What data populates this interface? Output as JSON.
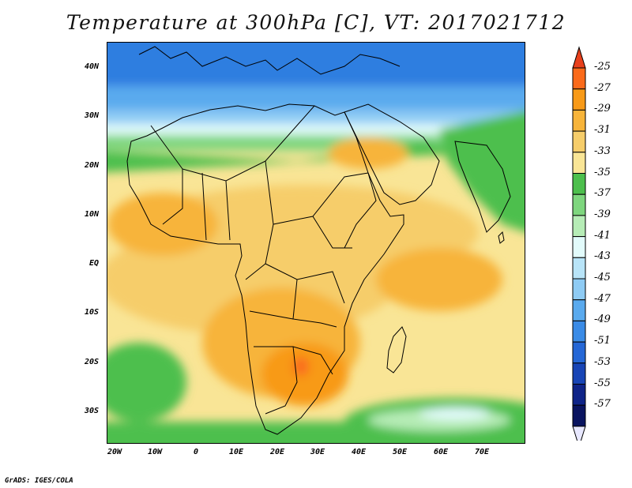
{
  "title": "Temperature at 300hPa [C], VT: 2017021712",
  "footer": "GrADS: IGES/COLA",
  "map": {
    "lat_range": [
      -37,
      45
    ],
    "lon_range": [
      -23,
      80
    ],
    "lat_labels": [
      "40N",
      "30N",
      "20N",
      "10N",
      "EQ",
      "10S",
      "20S",
      "30S"
    ],
    "lon_labels": [
      "20W",
      "10W",
      "0",
      "10E",
      "20E",
      "30E",
      "40E",
      "50E",
      "60E",
      "70E"
    ]
  },
  "colorbar": {
    "labels": [
      "-25",
      "-27",
      "-29",
      "-31",
      "-33",
      "-35",
      "-37",
      "-39",
      "-41",
      "-43",
      "-45",
      "-47",
      "-49",
      "-51",
      "-53",
      "-55",
      "-57"
    ],
    "colors": [
      "#fb6a1a",
      "#f89a18",
      "#f7b43a",
      "#f6cd6a",
      "#f9e596",
      "#4dbf4d",
      "#7ed67e",
      "#b6ecb6",
      "#e2fbfb",
      "#b8e4f8",
      "#8ecbf4",
      "#5aaaee",
      "#3a8be6",
      "#2567d6",
      "#1845b6",
      "#0f2488",
      "#0a1460"
    ],
    "top_arrow_color": "#e8401c",
    "bottom_arrow_color": "#e8e8ff"
  }
}
